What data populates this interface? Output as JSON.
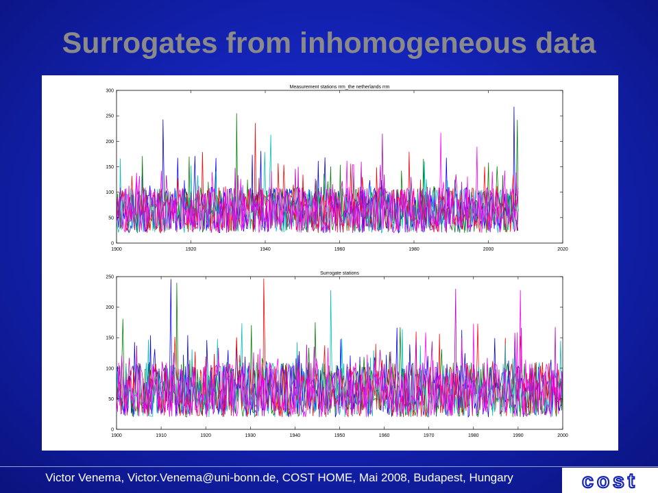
{
  "slide": {
    "title": "Surrogates from inhomogeneous data",
    "footer": "Victor Venema, Victor.Venema@uni-bonn.de, COST HOME, Mai 2008, Budapest, Hungary",
    "logo_text": "cost"
  },
  "colors": {
    "background": "#1424b8",
    "title": "#8a8a8a",
    "series": [
      "#0000ff",
      "#008000",
      "#ff0000",
      "#00bfbf",
      "#bf00bf",
      "#ff00ff"
    ]
  },
  "chart_data": [
    {
      "type": "line",
      "title": "Measurement stations rrm_the netherlands rrm",
      "xlabel": "",
      "ylabel": "",
      "xlim": [
        1900,
        2020
      ],
      "ylim": [
        0,
        300
      ],
      "xticks": [
        1900,
        1920,
        1940,
        1960,
        1980,
        2000,
        2020
      ],
      "yticks": [
        0,
        50,
        100,
        150,
        200,
        250,
        300
      ],
      "data_x_range": [
        1900,
        2008
      ],
      "typical_range": [
        20,
        110
      ],
      "peaks": [
        {
          "x": 1912.5,
          "y": 243
        },
        {
          "x": 1932.3,
          "y": 255
        },
        {
          "x": 1937.3,
          "y": 236
        },
        {
          "x": 1941.5,
          "y": 213
        },
        {
          "x": 1971.5,
          "y": 215
        },
        {
          "x": 1987.2,
          "y": 217
        },
        {
          "x": 2006.9,
          "y": 268
        },
        {
          "x": 2007.8,
          "y": 242
        }
      ],
      "series_count": 6,
      "grid": false,
      "legend": "none"
    },
    {
      "type": "line",
      "title": "Surrogate stations",
      "xlabel": "",
      "ylabel": "",
      "xlim": [
        1900,
        2000
      ],
      "ylim": [
        0,
        250
      ],
      "xticks": [
        1900,
        1910,
        1920,
        1930,
        1940,
        1950,
        1960,
        1970,
        1980,
        1990,
        2000
      ],
      "yticks": [
        0,
        50,
        100,
        150,
        200,
        250
      ],
      "data_x_range": [
        1900,
        2000
      ],
      "typical_range": [
        20,
        110
      ],
      "peaks": [
        {
          "x": 1912.2,
          "y": 246
        },
        {
          "x": 1913.5,
          "y": 240
        },
        {
          "x": 1933.0,
          "y": 247
        },
        {
          "x": 1948.0,
          "y": 228
        },
        {
          "x": 1976.0,
          "y": 230
        },
        {
          "x": 1990.5,
          "y": 228
        }
      ],
      "series_count": 6,
      "grid": false,
      "legend": "none"
    }
  ]
}
